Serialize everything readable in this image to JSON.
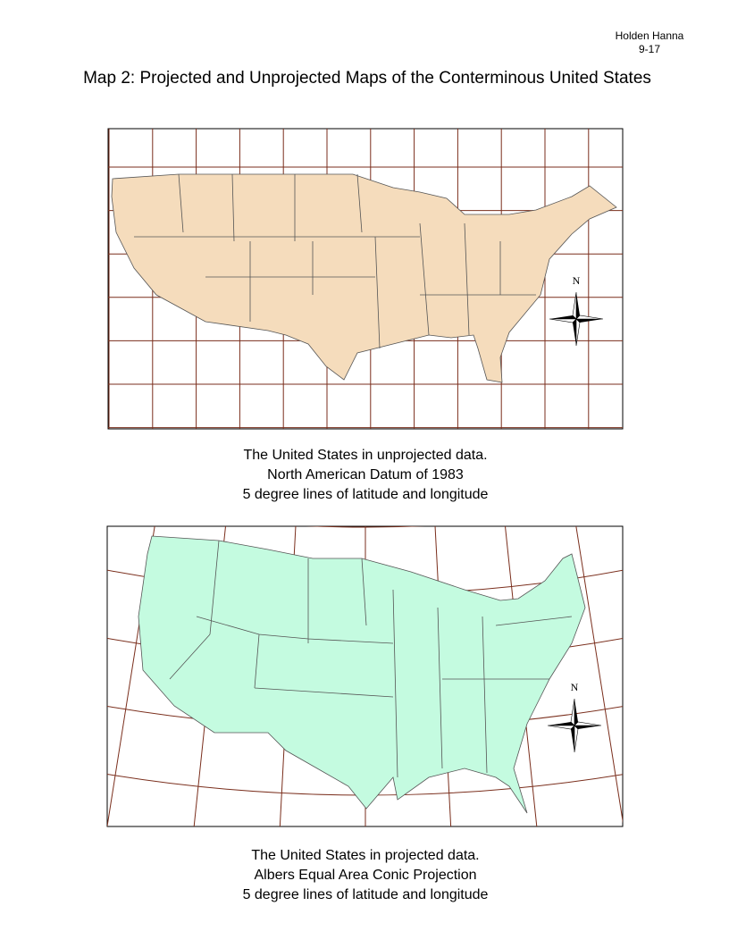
{
  "header": {
    "author": "Holden Hanna",
    "date": "9-17",
    "title": "Map 2: Projected and Unprojected Maps of the Conterminous United States"
  },
  "maps": [
    {
      "caption": [
        "The United States in unprojected data.",
        "North American Datum of 1983",
        "5 degree lines of latitude and longitude"
      ],
      "north_label": "N"
    },
    {
      "caption": [
        "The United States in projected data.",
        "Albers Equal Area Conic Projection",
        "5 degree lines of latitude and longitude"
      ],
      "north_label": "N"
    }
  ]
}
